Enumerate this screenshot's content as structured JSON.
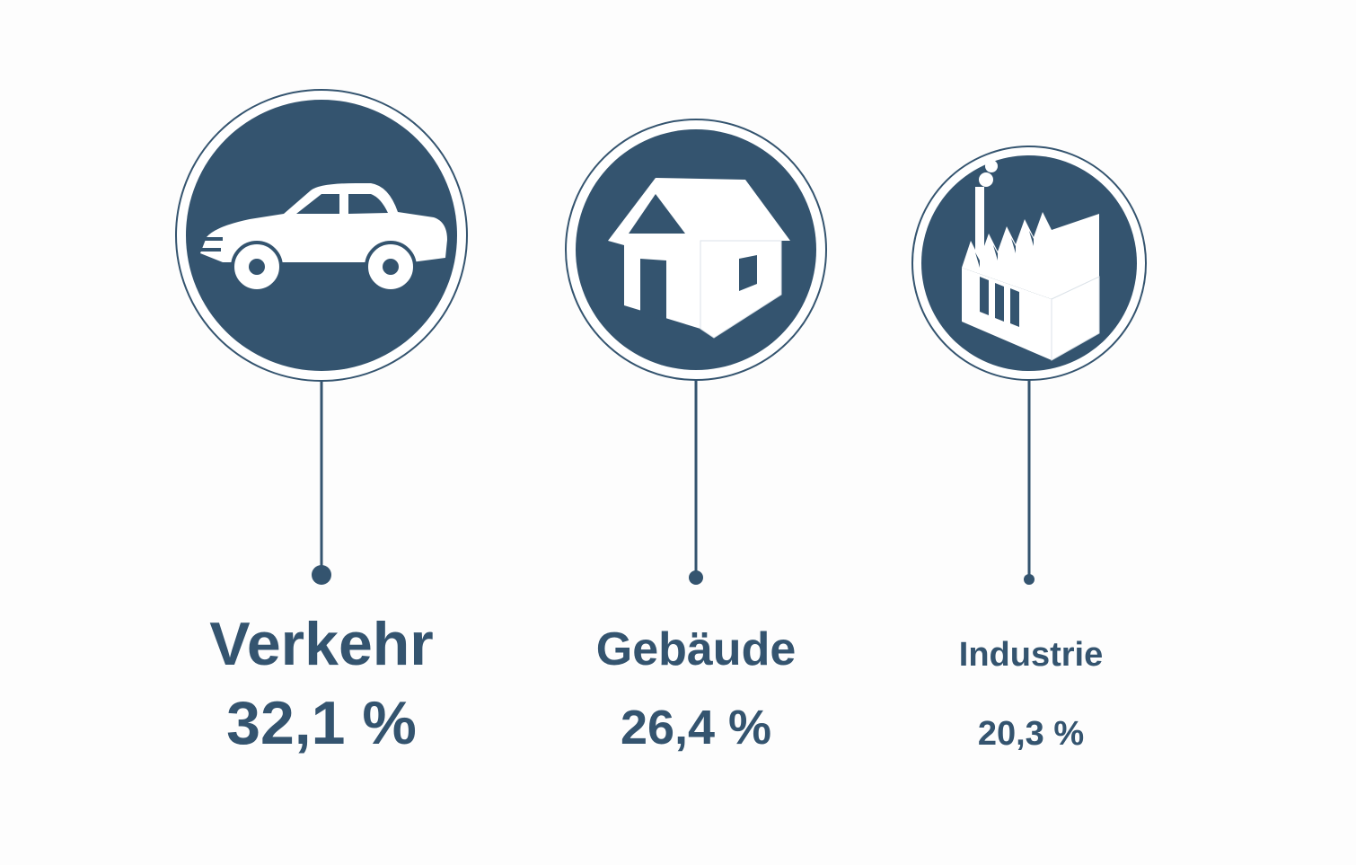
{
  "items": [
    {
      "label": "Verkehr",
      "value": "32,1 %"
    },
    {
      "label": "Gebäude",
      "value": "26,4 %"
    },
    {
      "label": "Industrie",
      "value": "20,3 %"
    }
  ]
}
